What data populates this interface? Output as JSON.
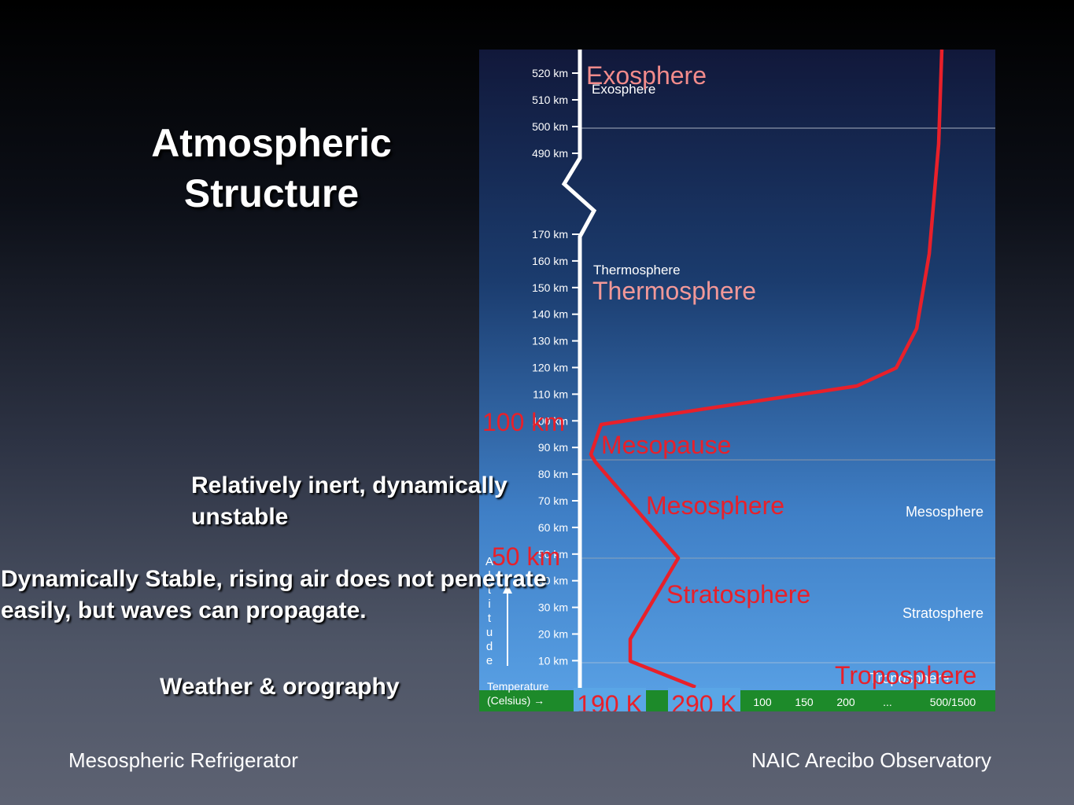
{
  "title_line1": "Atmospheric",
  "title_line2": "Structure",
  "notes": {
    "mesosphere": [
      "Relatively inert, dynamically",
      "unstable"
    ],
    "stratosphere": [
      "Dynamically Stable, rising air does not penetrate",
      "easily, but waves can propagate."
    ],
    "troposphere": "Weather & orography"
  },
  "footer": {
    "left": "Mesospheric Refrigerator",
    "right": "NAIC Arecibo Observatory"
  },
  "diagram": {
    "altitude_ticks_upper": [
      "520 km",
      "510 km",
      "500 km",
      "490 km"
    ],
    "altitude_ticks_lower": [
      "170 km",
      "160 km",
      "150 km",
      "140 km",
      "130 km",
      "120 km",
      "110 km",
      "100 km",
      "90 km",
      "80 km",
      "70 km",
      "60 km",
      "50 km",
      "40 km",
      "30 km",
      "20 km",
      "10 km"
    ],
    "altitude_axis_letters": [
      "A",
      "l",
      "t",
      "i",
      "t",
      "u",
      "d",
      "e"
    ],
    "layer_labels_white": {
      "exosphere": "Exosphere",
      "thermosphere": "Thermosphere",
      "mesosphere": "Mesosphere",
      "stratosphere": "Stratosphere",
      "troposphere": "Troposphere"
    },
    "layer_labels_red": {
      "exosphere": "Exosphere",
      "thermosphere": "Thermosphere",
      "mesopause": "Mesopause",
      "mesosphere": "Mesosphere",
      "stratosphere": "Stratosphere",
      "troposphere": "Troposphere"
    },
    "annotations_red": {
      "alt_100": "100 km",
      "alt_50": "50 km"
    },
    "temperature_label": [
      "Temperature",
      "(Celsius) →"
    ],
    "temperature_ticks": [
      "100",
      "150",
      "200",
      "...",
      "500/1500"
    ],
    "kelvin_labels": [
      "190 K",
      "290 K"
    ],
    "colors": {
      "sky_top": "#11183a",
      "sky_bottom": "#5aa2e6",
      "ground": "#1d8a2a",
      "curve": "#e8202a",
      "exosphere_label": "#f28b8b",
      "thermosphere_label": "#f29898",
      "kelvin_box": "#5aa6e6"
    }
  }
}
